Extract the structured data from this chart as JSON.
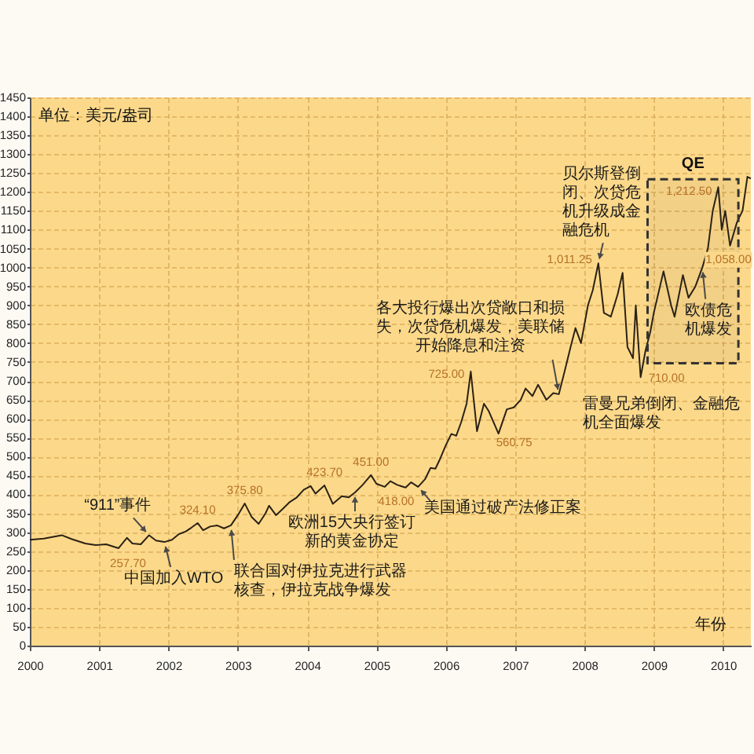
{
  "chart_data": {
    "type": "line",
    "xlabel": "年份",
    "ylabel": "单位：美元/盎司",
    "x": [
      2000.0,
      2000.2,
      2000.46,
      2000.6,
      2000.8,
      2000.95,
      2001.1,
      2001.28,
      2001.4,
      2001.48,
      2001.6,
      2001.72,
      2001.82,
      2001.94,
      2002.05,
      2002.15,
      2002.25,
      2002.33,
      2002.42,
      2002.5,
      2002.6,
      2002.7,
      2002.8,
      2002.9,
      2003.0,
      2003.1,
      2003.2,
      2003.3,
      2003.4,
      2003.45,
      2003.55,
      2003.65,
      2003.75,
      2003.85,
      2003.95,
      2004.05,
      2004.12,
      2004.25,
      2004.37,
      2004.5,
      2004.6,
      2004.69,
      2004.8,
      2004.92,
      2005.0,
      2005.12,
      2005.2,
      2005.3,
      2005.42,
      2005.5,
      2005.6,
      2005.7,
      2005.78,
      2005.85,
      2005.92,
      2006.0,
      2006.08,
      2006.15,
      2006.22,
      2006.3,
      2006.36,
      2006.45,
      2006.55,
      2006.62,
      2006.76,
      2006.88,
      2006.98,
      2007.08,
      2007.15,
      2007.25,
      2007.33,
      2007.45,
      2007.55,
      2007.63,
      2007.72,
      2007.8,
      2007.87,
      2007.95,
      2008.05,
      2008.12,
      2008.2,
      2008.28,
      2008.38,
      2008.48,
      2008.55,
      2008.62,
      2008.7,
      2008.74,
      2008.81,
      2008.88,
      2008.95,
      2009.0,
      2009.14,
      2009.25,
      2009.3,
      2009.42,
      2009.5,
      2009.6,
      2009.7,
      2009.78,
      2009.85,
      2009.93,
      2009.98,
      2010.03,
      2010.1,
      2010.2,
      2010.28,
      2010.35,
      2010.4
    ],
    "series": [
      {
        "color": "#2b2115",
        "values": [
          280,
          283,
          292,
          282,
          270,
          266,
          268,
          257.7,
          285,
          270,
          268,
          292,
          278,
          274,
          280,
          295,
          302,
          312,
          324.1,
          305,
          315,
          318,
          310,
          318,
          345,
          375.8,
          340,
          322,
          350,
          370,
          345,
          362,
          380,
          392,
          412,
          422,
          402,
          423.7,
          375,
          395,
          392,
          405,
          425,
          451,
          428,
          420,
          435,
          425,
          418,
          432,
          420,
          440,
          470,
          468,
          495,
          530,
          560,
          555,
          590,
          640,
          725,
          567,
          640,
          620,
          560.75,
          625,
          630,
          650,
          680,
          660,
          690,
          650,
          668,
          665,
          730,
          790,
          840,
          800,
          900,
          940,
          1011.25,
          880,
          870,
          930,
          986,
          790,
          760,
          900,
          710,
          780,
          830,
          880,
          990,
          900,
          870,
          980,
          920,
          950,
          1000,
          1050,
          1150,
          1212.5,
          1100,
          1150,
          1058,
          1120,
          1150,
          1240,
          1235
        ]
      }
    ],
    "xlim": [
      2000,
      2010.4
    ],
    "ylim": [
      0,
      1450
    ],
    "xticks": [
      2000,
      2001,
      2002,
      2003,
      2004,
      2005,
      2006,
      2007,
      2008,
      2009,
      2010
    ],
    "yticks": [
      0,
      50,
      100,
      150,
      200,
      250,
      300,
      350,
      400,
      450,
      500,
      550,
      600,
      650,
      700,
      750,
      800,
      850,
      900,
      950,
      1000,
      1050,
      1100,
      1150,
      1200,
      1250,
      1300,
      1350,
      1400,
      1450
    ],
    "grid": true,
    "bands": [
      {
        "axis": "x",
        "from": 2008.91,
        "to": 2010.22,
        "label": "QE",
        "color": "#333333"
      }
    ],
    "annotations": [
      {
        "text": "“911”事件",
        "x": 2001.72,
        "y": 292
      },
      {
        "text": "257.70",
        "x": 2001.28,
        "y": 257.7
      },
      {
        "text": "中国加入WTO",
        "x": 2001.94,
        "y": 274
      },
      {
        "text": "324.10",
        "x": 2002.42,
        "y": 324.1
      },
      {
        "text": "375.80",
        "x": 2003.1,
        "y": 375.8
      },
      {
        "text": "联合国对伊拉克进行武器核查，伊拉克战争爆发",
        "x": 2002.9,
        "y": 318
      },
      {
        "text": "423.70",
        "x": 2004.25,
        "y": 423.7
      },
      {
        "text": "451.00",
        "x": 2004.92,
        "y": 451
      },
      {
        "text": "欧洲15大央行签订新的黄金协定",
        "x": 2004.69,
        "y": 405
      },
      {
        "text": "418.00",
        "x": 2005.42,
        "y": 418
      },
      {
        "text": "美国通过破产法修正案",
        "x": 2005.6,
        "y": 420
      },
      {
        "text": "725.00",
        "x": 2006.36,
        "y": 725
      },
      {
        "text": "560.75",
        "x": 2006.76,
        "y": 560.75
      },
      {
        "text": "各大投行爆出次贷敞口和损失，次贷危机爆发，美联储开始降息和注资",
        "x": 2007.63,
        "y": 665
      },
      {
        "text": "1,011.25",
        "x": 2008.2,
        "y": 1011.25
      },
      {
        "text": "贝尔斯登倒闭、次贷危机升级成金融危机",
        "x": 2008.2,
        "y": 1011.25
      },
      {
        "text": "710.00",
        "x": 2008.81,
        "y": 710
      },
      "雷曼兄弟倒闭、金融危机全面爆发",
      {
        "text": "1,212.50",
        "x": 2009.93,
        "y": 1212.5
      },
      {
        "text": "1,058.00",
        "x": 2010.1,
        "y": 1058
      },
      {
        "text": "欧债危机爆发",
        "x": 2009.7,
        "y": 1000
      }
    ]
  }
}
